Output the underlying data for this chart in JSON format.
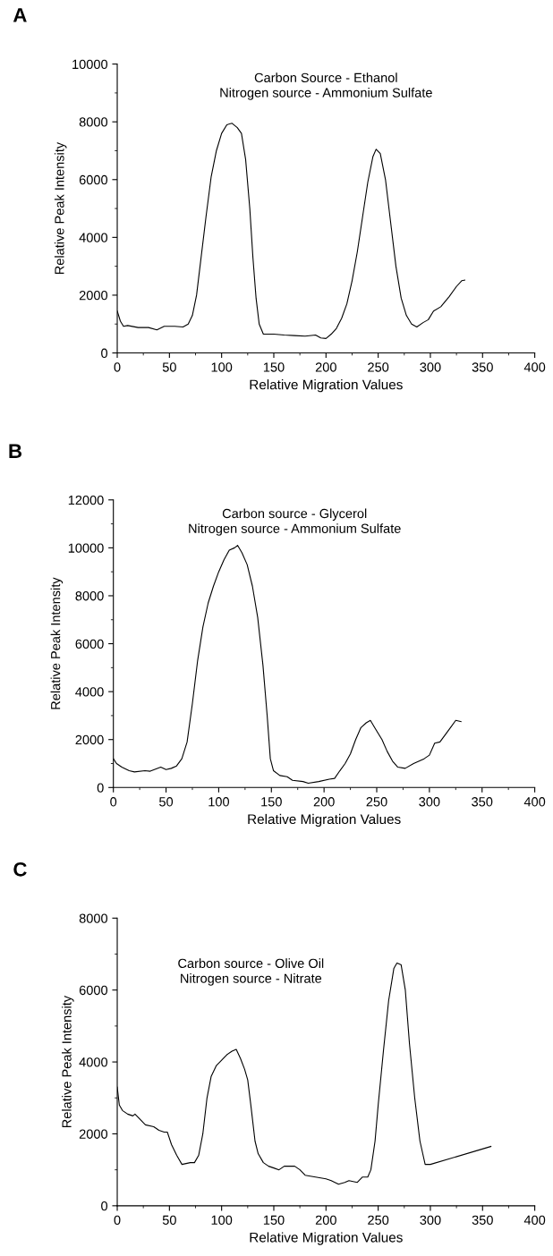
{
  "chart_data": [
    {
      "type": "line",
      "title": "A",
      "xlabel": "Relative Migration Values",
      "ylabel": "Relative Peak Intensity",
      "annotations": [
        "Carbon Source - Ethanol\nNitrogen source - Ammonium Sulfate"
      ],
      "xlim": [
        0,
        400
      ],
      "xticks": [
        0,
        50,
        100,
        150,
        200,
        250,
        300,
        350,
        400
      ],
      "ylim": [
        0,
        10000
      ],
      "yticks": [
        0,
        2000,
        4000,
        6000,
        8000,
        10000
      ],
      "series": [
        {
          "color": "#000000",
          "x": [
            0,
            3,
            6,
            10,
            20,
            30,
            38,
            45,
            55,
            63,
            68,
            72,
            76,
            80,
            85,
            90,
            95,
            100,
            105,
            110,
            115,
            119,
            123,
            127,
            130,
            133,
            136,
            140,
            150,
            160,
            170,
            180,
            190,
            195,
            200,
            205,
            210,
            215,
            220,
            225,
            230,
            235,
            240,
            245,
            248,
            252,
            257,
            262,
            267,
            272,
            277,
            282,
            287,
            293,
            298,
            303,
            310,
            318,
            325,
            330,
            333
          ],
          "values": [
            1450,
            1100,
            920,
            950,
            880,
            880,
            800,
            920,
            920,
            900,
            1000,
            1300,
            2000,
            3200,
            4700,
            6100,
            7000,
            7600,
            7900,
            7950,
            7800,
            7600,
            6700,
            5000,
            3300,
            1900,
            1000,
            650,
            650,
            620,
            600,
            580,
            620,
            520,
            500,
            650,
            850,
            1200,
            1700,
            2500,
            3500,
            4700,
            5900,
            6800,
            7050,
            6900,
            6000,
            4500,
            3000,
            1900,
            1300,
            1000,
            900,
            1050,
            1150,
            1450,
            1600,
            1950,
            2300,
            2500,
            2520
          ]
        }
      ]
    },
    {
      "type": "line",
      "title": "B",
      "xlabel": "Relative Migration Values",
      "ylabel": "Relative Peak Intensity",
      "annotations": [
        "Carbon source - Glycerol\nNitrogen source - Ammonium Sulfate"
      ],
      "xlim": [
        0,
        400
      ],
      "xticks": [
        0,
        50,
        100,
        150,
        200,
        250,
        300,
        350,
        400
      ],
      "ylim": [
        0,
        12000
      ],
      "yticks": [
        0,
        2000,
        4000,
        6000,
        8000,
        10000,
        12000
      ],
      "series": [
        {
          "color": "#000000",
          "x": [
            0,
            3,
            8,
            15,
            20,
            30,
            35,
            45,
            50,
            55,
            60,
            65,
            70,
            75,
            80,
            85,
            90,
            95,
            100,
            105,
            110,
            115,
            118,
            122,
            127,
            132,
            137,
            142,
            146,
            149,
            152,
            158,
            165,
            170,
            180,
            185,
            195,
            205,
            210,
            215,
            220,
            225,
            230,
            235,
            240,
            244,
            248,
            255,
            260,
            265,
            270,
            277,
            285,
            295,
            300,
            305,
            310,
            315,
            320,
            325,
            330
          ],
          "values": [
            1200,
            1000,
            850,
            700,
            650,
            700,
            680,
            850,
            750,
            800,
            900,
            1200,
            1900,
            3500,
            5300,
            6700,
            7700,
            8400,
            9000,
            9500,
            9900,
            10000,
            10100,
            9800,
            9300,
            8400,
            7100,
            5100,
            3000,
            1200,
            700,
            500,
            450,
            300,
            250,
            180,
            250,
            350,
            380,
            700,
            1000,
            1400,
            2000,
            2500,
            2700,
            2800,
            2500,
            2000,
            1500,
            1100,
            850,
            800,
            1000,
            1200,
            1350,
            1850,
            1900,
            2200,
            2500,
            2800,
            2750
          ]
        }
      ]
    },
    {
      "type": "line",
      "title": "C",
      "xlabel": "Relative Migration Values",
      "ylabel": "Relative Peak Intensity",
      "annotations": [
        "Carbon source - Olive Oil\nNitrogen source - Nitrate"
      ],
      "xlim": [
        0,
        400
      ],
      "xticks": [
        0,
        50,
        100,
        150,
        200,
        250,
        300,
        350,
        400
      ],
      "ylim": [
        0,
        8000
      ],
      "yticks": [
        0,
        2000,
        4000,
        6000,
        8000
      ],
      "series": [
        {
          "color": "#000000",
          "x": [
            0,
            2,
            5,
            10,
            15,
            17,
            22,
            27,
            35,
            40,
            45,
            48,
            52,
            57,
            62,
            70,
            74,
            78,
            82,
            86,
            90,
            95,
            100,
            105,
            110,
            114,
            118,
            122,
            125,
            128,
            132,
            135,
            140,
            145,
            150,
            155,
            160,
            165,
            170,
            175,
            180,
            190,
            200,
            205,
            212,
            218,
            222,
            230,
            235,
            240,
            243,
            247,
            250,
            255,
            260,
            265,
            268,
            272,
            276,
            280,
            285,
            290,
            295,
            300,
            358
          ],
          "values": [
            3300,
            2800,
            2650,
            2550,
            2500,
            2550,
            2400,
            2250,
            2200,
            2100,
            2050,
            2050,
            1700,
            1400,
            1150,
            1200,
            1200,
            1400,
            2000,
            3000,
            3600,
            3900,
            4050,
            4200,
            4300,
            4350,
            4100,
            3800,
            3500,
            2800,
            1800,
            1450,
            1200,
            1100,
            1050,
            1000,
            1100,
            1100,
            1100,
            1000,
            850,
            800,
            750,
            700,
            600,
            650,
            700,
            650,
            800,
            800,
            1000,
            1800,
            2800,
            4300,
            5700,
            6600,
            6750,
            6700,
            6000,
            4500,
            3000,
            1800,
            1150,
            1150,
            1650
          ]
        }
      ]
    }
  ]
}
